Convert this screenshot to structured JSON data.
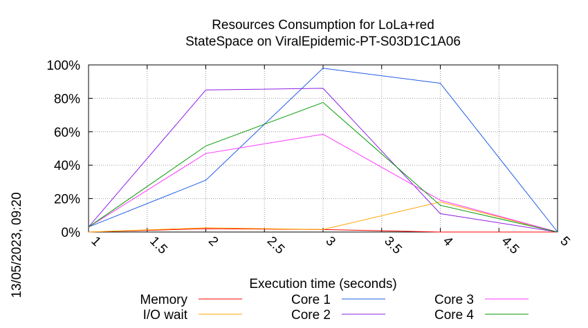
{
  "chart_data": {
    "type": "line",
    "title_line1": "Resources Consumption for LoLa+red",
    "title_line2": "StateSpace on ViralEpidemic-PT-S03D1C1A06",
    "xlabel": "Execution time (seconds)",
    "ylabel": "",
    "side_label": "13/05/2023, 09:20",
    "xlim": [
      1,
      5
    ],
    "ylim": [
      0,
      100
    ],
    "x_ticks": [
      1,
      1.5,
      2,
      2.5,
      3,
      3.5,
      4,
      4.5,
      5
    ],
    "x_tick_labels": [
      "1",
      "1.5",
      "2",
      "2.5",
      "3",
      "3.5",
      "4",
      "4.5",
      "5"
    ],
    "y_ticks": [
      0,
      20,
      40,
      60,
      80,
      100
    ],
    "y_tick_labels": [
      "0%",
      "20%",
      "40%",
      "60%",
      "80%",
      "100%"
    ],
    "grid": true,
    "legend_position": "bottom",
    "x": [
      1,
      2,
      3,
      4,
      5
    ],
    "series": [
      {
        "name": "Memory",
        "color": "#ff0000",
        "values": [
          0,
          2,
          1.5,
          0,
          0
        ]
      },
      {
        "name": "I/O wait",
        "color": "#ffa500",
        "values": [
          0,
          2.5,
          1.5,
          18,
          0
        ]
      },
      {
        "name": "Core 1",
        "color": "#1e5ce6",
        "values": [
          3,
          31,
          98,
          89,
          0
        ]
      },
      {
        "name": "Core 2",
        "color": "#8b1ee6",
        "values": [
          3,
          85,
          86,
          11,
          0
        ]
      },
      {
        "name": "Core 3",
        "color": "#ff33ff",
        "values": [
          3,
          47,
          58.5,
          19,
          0
        ]
      },
      {
        "name": "Core 4",
        "color": "#009900",
        "values": [
          3,
          51.5,
          77.5,
          16,
          0
        ]
      }
    ]
  }
}
